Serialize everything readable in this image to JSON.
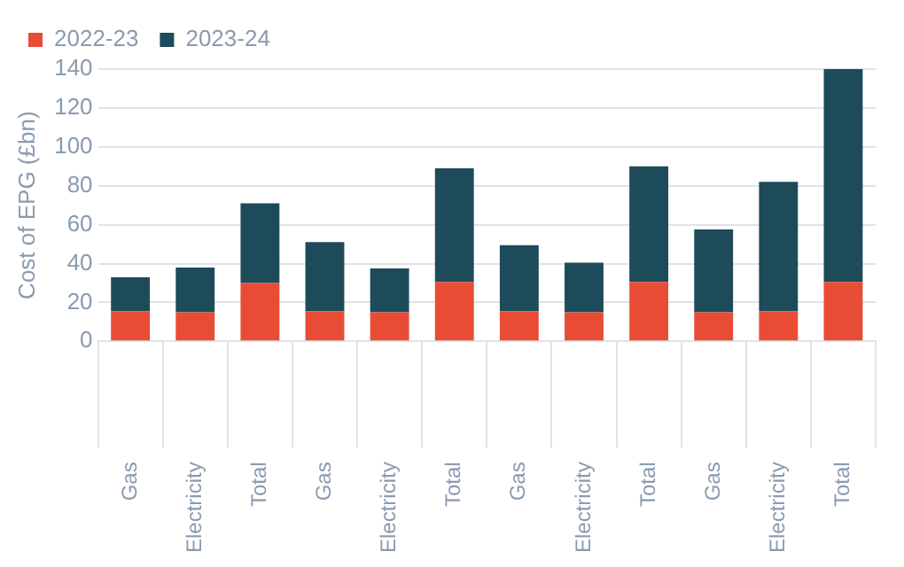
{
  "chart_data": {
    "type": "bar",
    "stacked": true,
    "ylabel": "Cost of EPG (£bn)",
    "categories": [
      "Gas",
      "Electricity",
      "Total",
      "Gas",
      "Electricity",
      "Total",
      "Gas",
      "Electricity",
      "Total",
      "Gas",
      "Electricity",
      "Total"
    ],
    "series": [
      {
        "name": "2022-23",
        "color": "#e84c35",
        "values": [
          15.5,
          15,
          30,
          15.5,
          15,
          30.5,
          15.5,
          15,
          30.5,
          15,
          15.5,
          30.5
        ]
      },
      {
        "name": "2023-24",
        "color": "#1d4b5a",
        "values": [
          17.5,
          23,
          41,
          35.5,
          22.5,
          58.5,
          34,
          25.5,
          59.5,
          42.5,
          66.5,
          109.5
        ]
      }
    ],
    "ylim": [
      0,
      140
    ],
    "yticks": [
      0,
      20,
      40,
      60,
      80,
      100,
      120,
      140
    ],
    "grid": "y",
    "legend": "top left"
  }
}
